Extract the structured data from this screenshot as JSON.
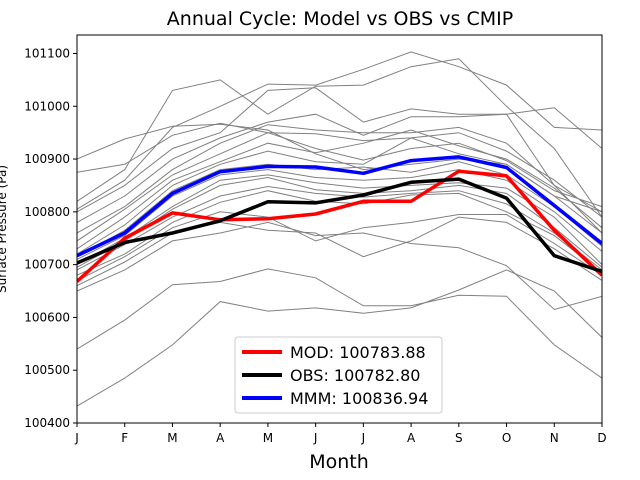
{
  "chart_data": {
    "type": "line",
    "title": "Annual Cycle: Model vs OBS vs CMIP",
    "xlabel": "Month",
    "ylabel": "Surface Pressure (Pa)",
    "categories": [
      "J",
      "F",
      "M",
      "A",
      "M",
      "J",
      "J",
      "A",
      "S",
      "O",
      "N",
      "D"
    ],
    "ylim": [
      100400,
      101135
    ],
    "yticks": [
      100400,
      100500,
      100600,
      100700,
      100800,
      100900,
      101000,
      101100
    ],
    "ytick_labels": [
      "100400",
      "100500",
      "100600",
      "100700",
      "100800",
      "100900",
      "101000",
      "101100"
    ],
    "ensemble_color": "#808080",
    "ensemble": [
      [
        100900,
        100938,
        100962,
        100966,
        100955,
        100910,
        100880,
        100890,
        100900,
        100890,
        100830,
        100800
      ],
      [
        100875,
        100890,
        100945,
        100968,
        100950,
        100920,
        100898,
        100920,
        100930,
        100897,
        100840,
        100810
      ],
      [
        100820,
        100880,
        101030,
        101050,
        100985,
        101038,
        101040,
        101075,
        101090,
        101000,
        100920,
        100790
      ],
      [
        100805,
        100860,
        100960,
        101000,
        101042,
        101040,
        101070,
        101103,
        101075,
        101040,
        100960,
        100955
      ],
      [
        100800,
        100850,
        100920,
        100950,
        101030,
        101035,
        100970,
        100995,
        100985,
        100985,
        100997,
        100920
      ],
      [
        100780,
        100830,
        100900,
        100940,
        100970,
        100985,
        100945,
        100980,
        100980,
        100985,
        100850,
        100800
      ],
      [
        100760,
        100810,
        100880,
        100930,
        100965,
        100955,
        100950,
        100950,
        100960,
        100930,
        100850,
        100760
      ],
      [
        100745,
        100805,
        100870,
        100910,
        100950,
        100948,
        100935,
        100940,
        100950,
        100915,
        100860,
        100790
      ],
      [
        100730,
        100790,
        100860,
        100895,
        100930,
        100912,
        100930,
        100955,
        100925,
        100900,
        100845,
        100770
      ],
      [
        100720,
        100775,
        100850,
        100890,
        100915,
        100895,
        100890,
        100940,
        100910,
        100890,
        100830,
        100760
      ],
      [
        100715,
        100765,
        100840,
        100880,
        100890,
        100880,
        100885,
        100875,
        100895,
        100870,
        100810,
        100735
      ],
      [
        100710,
        100755,
        100830,
        100870,
        100880,
        100865,
        100860,
        100865,
        100880,
        100860,
        100800,
        100725
      ],
      [
        100700,
        100750,
        100810,
        100860,
        100870,
        100855,
        100845,
        100850,
        100855,
        100845,
        100790,
        100700
      ],
      [
        100695,
        100745,
        100805,
        100850,
        100865,
        100842,
        100835,
        100840,
        100850,
        100835,
        100770,
        100695
      ],
      [
        100690,
        100738,
        100790,
        100830,
        100848,
        100835,
        100828,
        100835,
        100840,
        100815,
        100760,
        100690
      ],
      [
        100680,
        100720,
        100780,
        100818,
        100840,
        100820,
        100815,
        100832,
        100835,
        100800,
        100755,
        100685
      ],
      [
        100670,
        100715,
        100770,
        100800,
        100790,
        100745,
        100770,
        100780,
        100795,
        100795,
        100740,
        100680
      ],
      [
        100660,
        100705,
        100760,
        100780,
        100765,
        100760,
        100715,
        100745,
        100790,
        100780,
        100730,
        100670
      ],
      [
        100650,
        100690,
        100745,
        100760,
        100780,
        100755,
        100760,
        100740,
        100732,
        100698,
        100615,
        100640
      ],
      [
        100540,
        100595,
        100662,
        100668,
        100692,
        100675,
        100622,
        100622,
        100642,
        100640,
        100548,
        100485
      ],
      [
        100432,
        100485,
        100548,
        100630,
        100612,
        100618,
        100608,
        100618,
        100652,
        100690,
        100650,
        100562
      ]
    ],
    "series": [
      {
        "name": "MOD",
        "legend_label": "MOD: 100783.88",
        "color": "#ff0000",
        "values": [
          100668,
          100750,
          100798,
          100785,
          100787,
          100796,
          100820,
          100820,
          100877,
          100868,
          100765,
          100680
        ]
      },
      {
        "name": "OBS",
        "legend_label": "OBS: 100782.80",
        "color": "#000000",
        "values": [
          100703,
          100742,
          100760,
          100783,
          100819,
          100817,
          100832,
          100856,
          100862,
          100826,
          100717,
          100687
        ]
      },
      {
        "name": "MMM",
        "legend_label": "MMM: 100836.94",
        "color": "#0000ff",
        "values": [
          100717,
          100760,
          100835,
          100876,
          100886,
          100885,
          100873,
          100897,
          100904,
          100884,
          100812,
          100740
        ]
      }
    ],
    "legend_position": "lower-center"
  }
}
